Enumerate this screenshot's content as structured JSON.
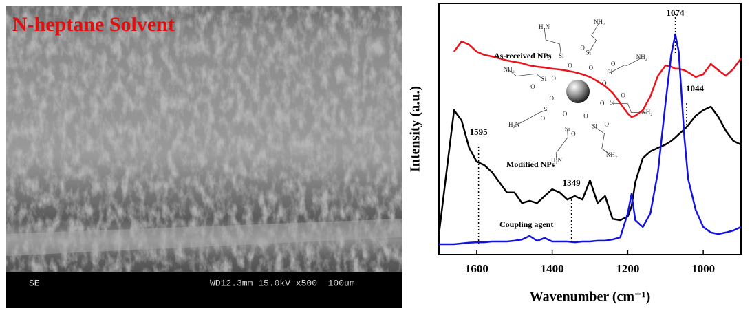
{
  "sem_image": {
    "title": "N-heptane Solvent",
    "mode": "SE",
    "info": "WD12.3mm 15.0kV x500  100um"
  },
  "chart_data": {
    "type": "line",
    "x_label": "Wavenumber (cm⁻¹)",
    "y_label": "Intensity (a.u.)",
    "xlim": [
      1700,
      900
    ],
    "xticks": [
      1600,
      1400,
      1200,
      1000
    ],
    "ylim": [
      0,
      100
    ],
    "x": [
      1700,
      1680,
      1660,
      1640,
      1620,
      1600,
      1580,
      1560,
      1540,
      1520,
      1500,
      1480,
      1460,
      1440,
      1420,
      1400,
      1380,
      1360,
      1340,
      1320,
      1300,
      1280,
      1260,
      1240,
      1220,
      1200,
      1190,
      1180,
      1160,
      1140,
      1120,
      1100,
      1085,
      1074,
      1065,
      1050,
      1040,
      1020,
      1000,
      980,
      960,
      940,
      920,
      900
    ],
    "series": [
      {
        "name": "As-received NPs",
        "color": "#e8141b",
        "values": [
          null,
          null,
          80.8,
          84.9,
          83.6,
          80.8,
          79.5,
          78.9,
          78.1,
          77.3,
          76.7,
          76.2,
          75.3,
          74.8,
          74.5,
          74.0,
          73.7,
          73.2,
          72.6,
          71.8,
          70.7,
          69.0,
          67.1,
          64.4,
          60.3,
          56.2,
          54.8,
          55.3,
          57.5,
          63.0,
          71.2,
          75.3,
          74.8,
          74.0,
          74.0,
          73.4,
          72.6,
          70.7,
          71.8,
          75.9,
          73.4,
          71.2,
          74.0,
          78.1
        ]
      },
      {
        "name": "Modified NPs",
        "color": "#000000",
        "values": [
          8.2,
          32.9,
          57.5,
          53.4,
          42.5,
          37.0,
          35.6,
          32.9,
          28.8,
          24.7,
          24.7,
          20.5,
          21.4,
          20.5,
          23.3,
          26.0,
          24.7,
          21.9,
          23.3,
          21.9,
          29.6,
          20.5,
          23.3,
          14.2,
          13.7,
          15.1,
          19.2,
          28.8,
          38.4,
          41.1,
          42.5,
          43.8,
          45.2,
          46.6,
          47.9,
          49.9,
          51.5,
          55.3,
          57.5,
          58.9,
          54.8,
          49.3,
          45.2,
          43.8
        ]
      },
      {
        "name": "Coupling agent",
        "color": "#1313e0",
        "values": [
          4.1,
          4.1,
          4.1,
          4.4,
          4.7,
          4.9,
          4.9,
          5.2,
          5.2,
          5.2,
          5.5,
          6.0,
          7.4,
          5.5,
          6.6,
          5.2,
          5.2,
          5.2,
          4.9,
          5.2,
          5.2,
          5.5,
          5.5,
          6.0,
          6.8,
          16.4,
          24.1,
          13.7,
          11.0,
          16.4,
          32.9,
          60.3,
          79.5,
          87.7,
          80.8,
          46.6,
          30.1,
          17.8,
          11.0,
          8.8,
          8.2,
          8.8,
          9.6,
          11.0
        ]
      }
    ],
    "peak_markers": [
      1595,
      1349,
      1074,
      1044
    ],
    "molecule_labels": {
      "si": [
        "Si",
        "Si",
        "Si",
        "Si",
        "Si",
        "Si",
        "Si",
        "Si"
      ],
      "o": [
        "O",
        "O",
        "O",
        "O",
        "O",
        "O",
        "O",
        "O",
        "O",
        "O",
        "O",
        "O",
        "O",
        "O",
        "O",
        "O"
      ],
      "amine": [
        "NH₂",
        "NH₂",
        "NH₂",
        "NH₂",
        "H₂N",
        "H₂N",
        "NH₂",
        "H₂N"
      ]
    }
  }
}
